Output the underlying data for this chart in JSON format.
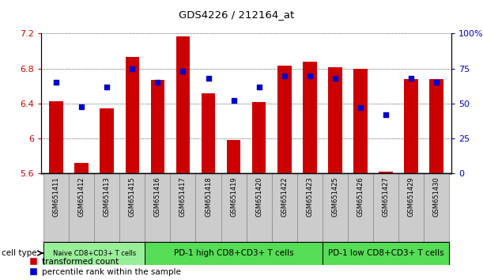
{
  "title": "GDS4226 / 212164_at",
  "samples": [
    "GSM651411",
    "GSM651412",
    "GSM651413",
    "GSM651415",
    "GSM651416",
    "GSM651417",
    "GSM651418",
    "GSM651419",
    "GSM651420",
    "GSM651422",
    "GSM651423",
    "GSM651425",
    "GSM651426",
    "GSM651427",
    "GSM651429",
    "GSM651430"
  ],
  "transformed_count": [
    6.43,
    5.72,
    6.35,
    6.93,
    6.67,
    7.17,
    6.52,
    5.98,
    6.42,
    6.83,
    6.88,
    6.82,
    6.8,
    5.62,
    6.68,
    6.68
  ],
  "percentile_rank": [
    65,
    48,
    62,
    75,
    65,
    73,
    68,
    52,
    62,
    70,
    70,
    68,
    47,
    42,
    68,
    65
  ],
  "ymin": 5.6,
  "ymax": 7.2,
  "yticks_left": [
    5.6,
    6.0,
    6.4,
    6.8,
    7.2
  ],
  "ytick_labels_left": [
    "5.6",
    "6",
    "6.4",
    "6.8",
    "7.2"
  ],
  "yticks_right": [
    0,
    25,
    50,
    75,
    100
  ],
  "ytick_labels_right": [
    "0",
    "25",
    "50",
    "75",
    "100%"
  ],
  "groups": [
    {
      "label": "Naive CD8+CD3+ T cells",
      "start": 0,
      "end": 4,
      "color": "#99ee99"
    },
    {
      "label": "PD-1 high CD8+CD3+ T cells",
      "start": 4,
      "end": 11,
      "color": "#55dd55"
    },
    {
      "label": "PD-1 low CD8+CD3+ T cells",
      "start": 11,
      "end": 16,
      "color": "#55dd55"
    }
  ],
  "bar_color": "#cc0000",
  "dot_color": "#0000cc",
  "tick_color_left": "#cc0000",
  "tick_color_right": "#0000cc",
  "cell_type_label": "cell type",
  "legend_bar": "transformed count",
  "legend_dot": "percentile rank within the sample"
}
